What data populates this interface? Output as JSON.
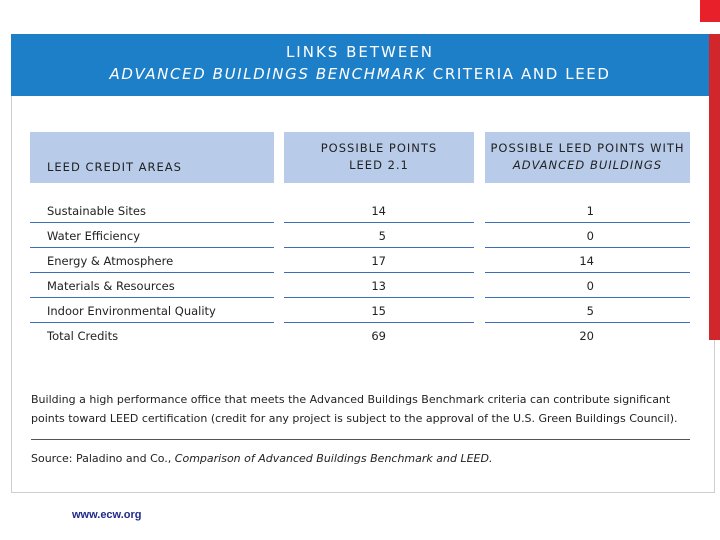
{
  "header": {
    "line1": "LINKS BETWEEN",
    "line2_italic": "ADVANCED BUILDINGS BENCHMARK",
    "line2_rest": " CRITERIA AND LEED"
  },
  "table": {
    "headers": {
      "col1": "LEED CREDIT AREAS",
      "col2_line1": "POSSIBLE POINTS",
      "col2_line2": "LEED 2.1",
      "col3_line1": "POSSIBLE LEED POINTS WITH",
      "col3_line2": "ADVANCED BUILDINGS"
    },
    "rows": [
      {
        "area": "Sustainable Sites",
        "leed": "14",
        "advanced": "1"
      },
      {
        "area": "Water Efficiency",
        "leed": "5",
        "advanced": "0"
      },
      {
        "area": "Energy & Atmosphere",
        "leed": "17",
        "advanced": "14"
      },
      {
        "area": "Materials & Resources",
        "leed": "13",
        "advanced": "0"
      },
      {
        "area": "Indoor Environmental Quality",
        "leed": "15",
        "advanced": "5"
      },
      {
        "area": "Total Credits",
        "leed": "69",
        "advanced": "20"
      }
    ]
  },
  "note": "Building a high performance office that meets the Advanced Buildings Benchmark criteria can contribute significant points toward LEED certification (credit for any project is subject to the approval of the U.S. Green Buildings Council).",
  "source": {
    "prefix": "Source: Paladino and Co., ",
    "title": "Comparison of Advanced Buildings Benchmark and LEED."
  },
  "footer": "www.ecw.org",
  "colors": {
    "header_blue": "#1e7fc9",
    "table_header_bg": "#b8cbe9",
    "rule_blue": "#3a6fb5",
    "accent_red": "#d0262c",
    "footer_link": "#1f2a8a"
  }
}
